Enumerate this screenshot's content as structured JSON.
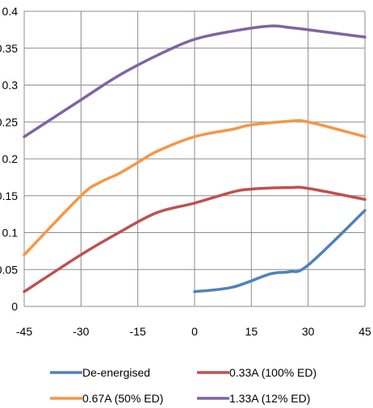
{
  "chart_data": {
    "type": "line",
    "x_ticks": [
      "-45",
      "-30",
      "-15",
      "0",
      "15",
      "30",
      "45"
    ],
    "y_ticks": [
      "0",
      "0.05",
      "0.1",
      "0.15",
      "0.2",
      "0.25",
      "0.3",
      "0.35",
      "0.4"
    ],
    "xlim": [
      -45,
      45
    ],
    "ylim": [
      0,
      0.4
    ],
    "grid": true,
    "legend_position": "bottom",
    "series": [
      {
        "name": "De-energised",
        "color": "#4F81BD",
        "x": [
          0,
          10,
          20,
          25,
          30,
          45
        ],
        "y": [
          0.02,
          0.026,
          0.044,
          0.047,
          0.056,
          0.13
        ]
      },
      {
        "name": "0.33A (100% ED)",
        "color": "#C0504D",
        "x": [
          -45,
          -30,
          -20,
          -10,
          0,
          10,
          15,
          25,
          30,
          45
        ],
        "y": [
          0.02,
          0.07,
          0.1,
          0.127,
          0.14,
          0.155,
          0.159,
          0.161,
          0.16,
          0.145
        ]
      },
      {
        "name": "0.67A (50% ED)",
        "color": "#F79646",
        "x": [
          -45,
          -30,
          -25,
          -20,
          -15,
          -10,
          0,
          10,
          15,
          25,
          30,
          45
        ],
        "y": [
          0.07,
          0.15,
          0.168,
          0.18,
          0.195,
          0.21,
          0.23,
          0.24,
          0.246,
          0.251,
          0.25,
          0.23
        ]
      },
      {
        "name": "1.33A (12% ED)",
        "color": "#8064A2",
        "x": [
          -45,
          -30,
          -20,
          -10,
          0,
          10,
          20,
          25,
          30,
          45
        ],
        "y": [
          0.23,
          0.28,
          0.313,
          0.34,
          0.362,
          0.373,
          0.38,
          0.378,
          0.375,
          0.365
        ]
      }
    ]
  }
}
